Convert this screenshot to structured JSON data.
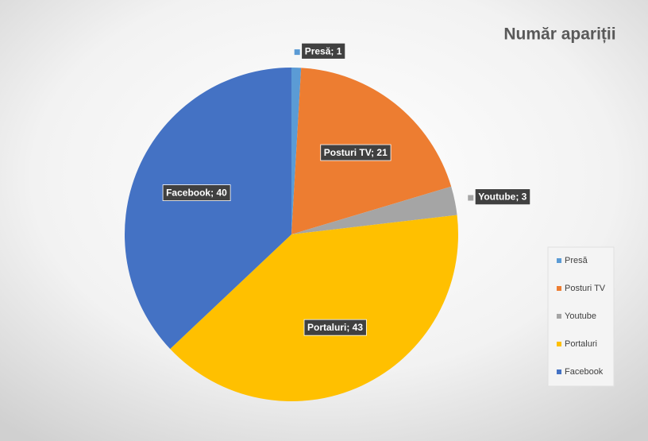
{
  "chart_data": {
    "type": "pie",
    "title": "Număr apariții",
    "categories": [
      "Presă",
      "Posturi TV",
      "Youtube",
      "Portaluri",
      "Facebook"
    ],
    "values": [
      1,
      21,
      3,
      43,
      40
    ],
    "value_labels": [
      "Presă; 1",
      "Posturi TV; 21",
      "Youtube; 3",
      "Portaluri; 43",
      "Facebook; 40"
    ],
    "colors": [
      "#5b9bd5",
      "#ed7d31",
      "#a5a5a5",
      "#ffc000",
      "#4472c4"
    ],
    "legend": "right"
  }
}
